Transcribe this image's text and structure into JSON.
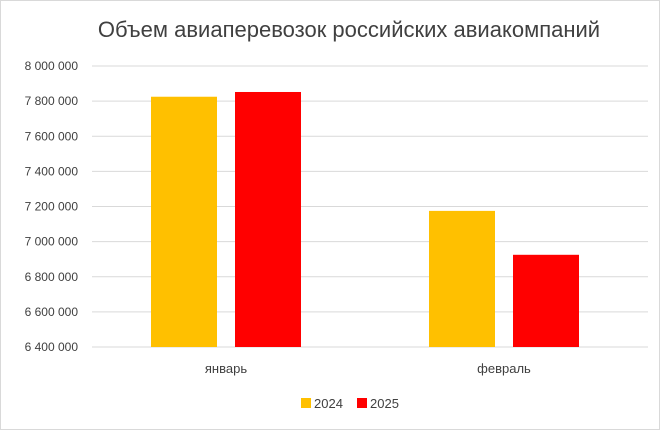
{
  "chart_data": {
    "type": "bar",
    "title": "Объем авиаперевозок российских авиакомпаний",
    "categories": [
      "январь",
      "февраль"
    ],
    "series": [
      {
        "name": "2024",
        "values": [
          7825000,
          7175000
        ],
        "color": "#FFC000"
      },
      {
        "name": "2025",
        "values": [
          7852000,
          6925000
        ],
        "color": "#FF0000"
      }
    ],
    "ylim": [
      6400000,
      8000000
    ],
    "yticks": [
      "6 400 000",
      "6 600 000",
      "6 800 000",
      "7 000 000",
      "7 200 000",
      "7 400 000",
      "7 600 000",
      "7 800 000",
      "8 000 000"
    ],
    "ytick_values": [
      6400000,
      6600000,
      6800000,
      7000000,
      7200000,
      7400000,
      7600000,
      7800000,
      8000000
    ],
    "grid": true,
    "legend_position": "bottom"
  }
}
